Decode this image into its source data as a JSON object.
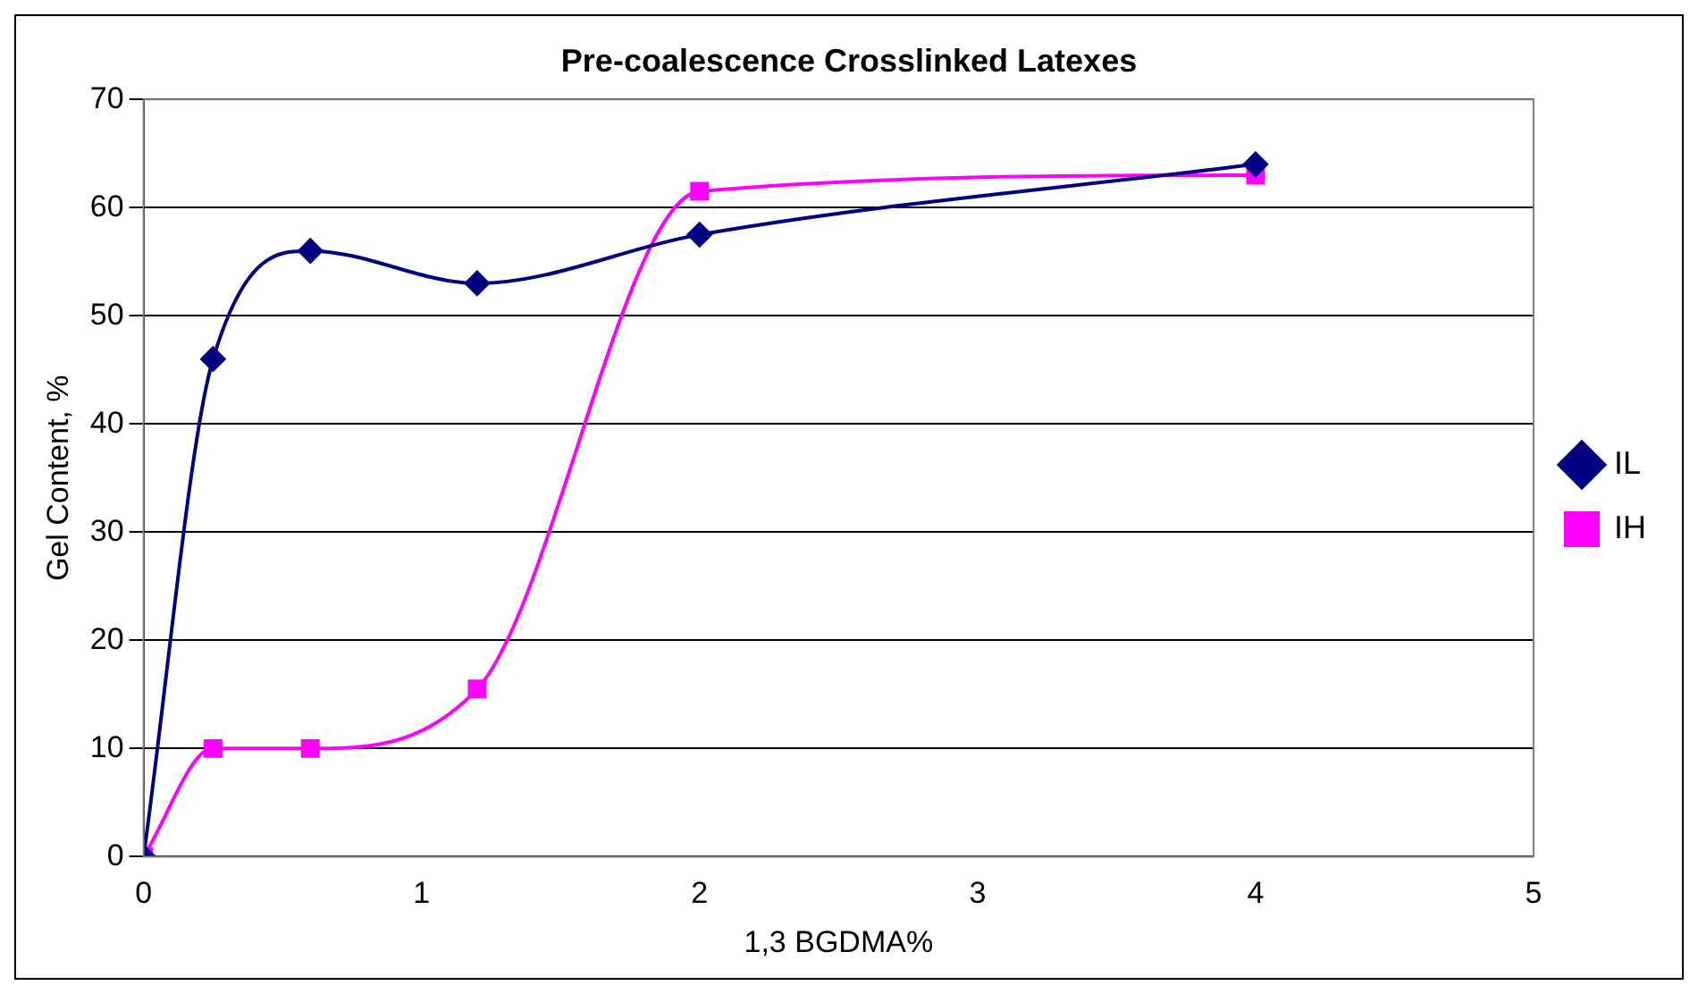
{
  "chart_data": {
    "type": "line",
    "title": "Pre-coalescence Crosslinked Latexes",
    "xlabel": "1,3 BGDMA%",
    "ylabel": "Gel Content, %",
    "xlim": [
      0,
      5
    ],
    "xticks": [
      0,
      1,
      2,
      3,
      4,
      5
    ],
    "ylim": [
      0,
      70
    ],
    "yticks": [
      0,
      10,
      20,
      30,
      40,
      50,
      60,
      70
    ],
    "grid": "y",
    "legend": "right",
    "series": [
      {
        "name": "IL",
        "color": "#000080",
        "marker": "diamond",
        "x": [
          0,
          0.25,
          0.6,
          1.2,
          2,
          4
        ],
        "values": [
          0,
          46,
          56,
          53,
          57.5,
          64
        ]
      },
      {
        "name": "IH",
        "color": "#ff00ff",
        "marker": "square",
        "x": [
          0,
          0.25,
          0.6,
          1.2,
          2,
          4
        ],
        "values": [
          0,
          10,
          10,
          15.5,
          61.5,
          63
        ]
      }
    ]
  }
}
